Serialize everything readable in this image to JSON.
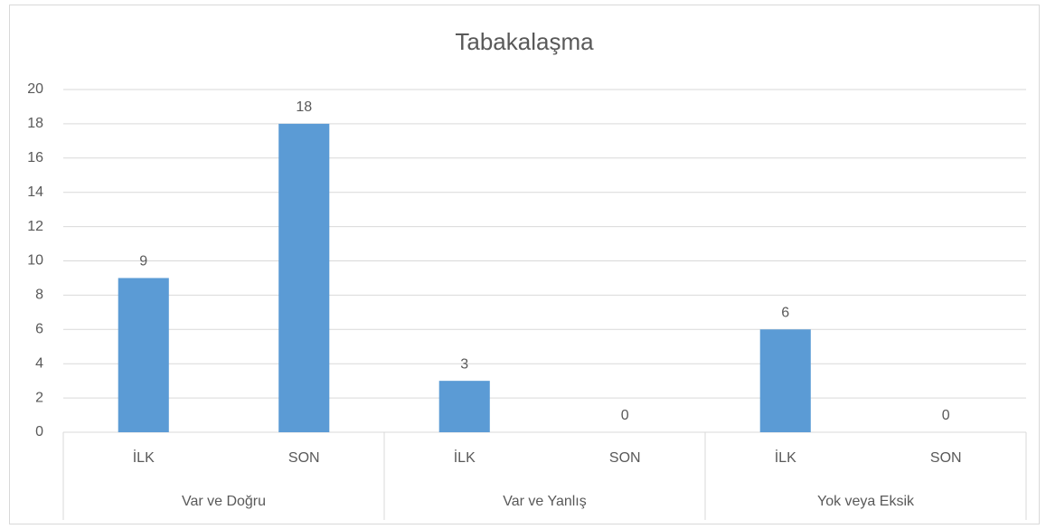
{
  "chart_data": {
    "type": "bar",
    "title": "Tabakalaşma",
    "categories": [
      "İLK",
      "SON",
      "İLK",
      "SON",
      "İLK",
      "SON"
    ],
    "groups": [
      "Var ve Doğru",
      "Var ve Yanlış",
      "Yok veya Eksik"
    ],
    "values": [
      9,
      18,
      3,
      0,
      6,
      0
    ],
    "color": "#5b9bd5",
    "ylim": [
      0,
      20
    ],
    "yticks": [
      0,
      2,
      4,
      6,
      8,
      10,
      12,
      14,
      16,
      18,
      20
    ],
    "grid": true
  }
}
